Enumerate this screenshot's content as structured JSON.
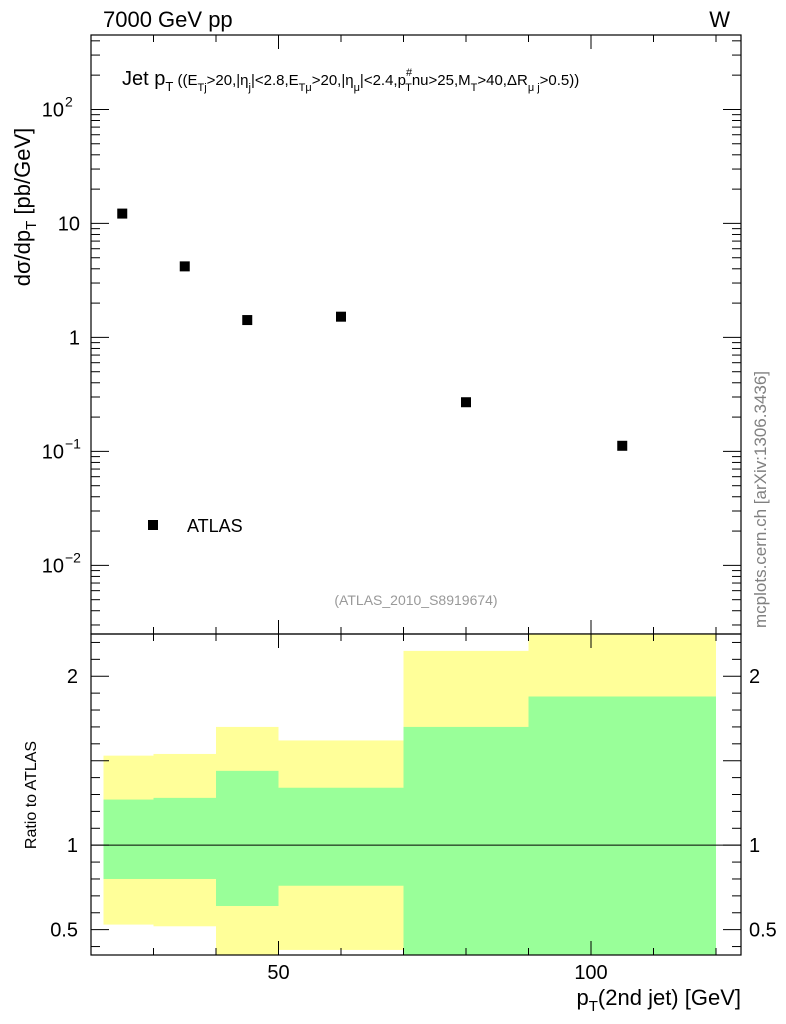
{
  "header": {
    "left": "7000 GeV pp",
    "right": "W"
  },
  "side_label": "mcplots.cern.ch [arXiv:1306.3436]",
  "chart_data": [
    {
      "type": "scatter",
      "panel": "main",
      "title": "Jet pT ((ETj>20,|ηj|<2.8,ETμ>20,|ημ|<2.4,pT#nu>25,MT>40,ΔRμj>0.5))",
      "title_parts": {
        "main": "Jet p",
        "main_sub": "T",
        "cuts": [
          {
            "t": " ((E"
          },
          {
            "sub": "Tj"
          },
          {
            "t": ">20,|η"
          },
          {
            "sub": "j"
          },
          {
            "t": "|<2.8,E"
          },
          {
            "sub": "Tμ"
          },
          {
            "t": ">20,|η"
          },
          {
            "sub": "μ"
          },
          {
            "t": "|<2.4,p"
          },
          {
            "sub": "T",
            "sup": "#"
          },
          {
            "t": "nu>25,M"
          },
          {
            "sub": "T"
          },
          {
            "t": ">40,ΔR"
          },
          {
            "sub": "μ j"
          },
          {
            "t": ">0.5))"
          }
        ]
      },
      "ylabel": "dσ/dp_T [pb/GeV]",
      "ylabel_parts": {
        "a": "dσ/dp",
        "sub": "T",
        "b": " [pb/GeV]"
      },
      "yscale": "log",
      "ylim": [
        0.0025,
        450
      ],
      "xlim": [
        20,
        124
      ],
      "yticks": [
        {
          "value": 0.01,
          "base": "10",
          "exp": "−2"
        },
        {
          "value": 0.1,
          "base": "10",
          "exp": "−1"
        },
        {
          "value": 1,
          "base": "1",
          "exp": ""
        },
        {
          "value": 10,
          "base": "10",
          "exp": ""
        },
        {
          "value": 100,
          "base": "10",
          "exp": "2"
        }
      ],
      "series": [
        {
          "name": "ATLAS",
          "marker": "square",
          "color": "#000000",
          "x": [
            25,
            35,
            45,
            60,
            80,
            105
          ],
          "y": [
            12.2,
            4.2,
            1.42,
            1.52,
            0.27,
            0.112
          ]
        }
      ],
      "legend_placement": "bottom-left",
      "annotation": "(ATLAS_2010_S8919674)"
    },
    {
      "type": "area",
      "panel": "ratio",
      "ylabel": "Ratio to ATLAS",
      "xlabel": "p_T(2nd jet) [GeV]",
      "xlabel_parts": {
        "a": "p",
        "sub": "T",
        "b": "(2nd jet) [GeV]"
      },
      "xlim": [
        20,
        124
      ],
      "ylim": [
        0.35,
        2.25
      ],
      "xticks": [
        50,
        100
      ],
      "yticks": [
        0.5,
        1,
        2
      ],
      "reference_line": 1,
      "bins": [
        {
          "xlo": 22,
          "xhi": 30,
          "green": [
            0.8,
            1.27
          ],
          "yellow": [
            0.53,
            1.53
          ]
        },
        {
          "xlo": 30,
          "xhi": 40,
          "green": [
            0.8,
            1.28
          ],
          "yellow": [
            0.52,
            1.54
          ]
        },
        {
          "xlo": 40,
          "xhi": 50,
          "green": [
            0.64,
            1.44
          ],
          "yellow": [
            0.35,
            1.7
          ]
        },
        {
          "xlo": 50,
          "xhi": 70,
          "green": [
            0.76,
            1.34
          ],
          "yellow": [
            0.38,
            1.62
          ]
        },
        {
          "xlo": 70,
          "xhi": 90,
          "green": [
            0.35,
            1.7
          ],
          "yellow": [
            0.35,
            2.15
          ]
        },
        {
          "xlo": 90,
          "xhi": 120,
          "green": [
            0.35,
            1.88
          ],
          "yellow": [
            0.35,
            2.25
          ]
        }
      ],
      "colors": {
        "green": "#99ff99",
        "yellow": "#ffff99"
      }
    }
  ]
}
